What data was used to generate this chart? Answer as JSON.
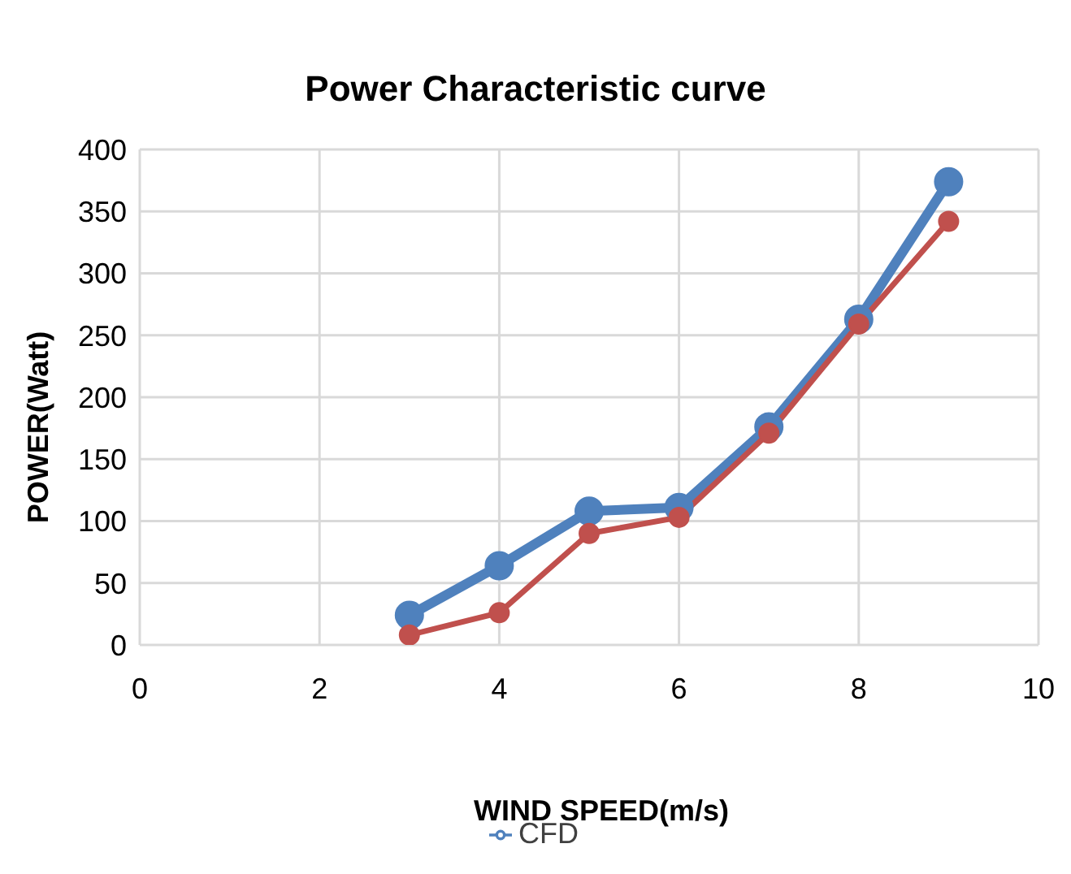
{
  "chart_data": {
    "type": "line",
    "title": "Power Characteristic curve",
    "xlabel": "WIND SPEED(m/s)",
    "ylabel": "POWER(Watt)",
    "x": [
      3,
      4,
      5,
      6,
      7,
      8,
      9
    ],
    "series": [
      {
        "name": "CFD",
        "color": "#4f81bd",
        "values": [
          24,
          64,
          108,
          111,
          176,
          263,
          374
        ]
      },
      {
        "color": "#c0504d",
        "values": [
          8,
          26,
          90,
          103,
          171,
          259,
          342
        ]
      }
    ],
    "xlim": [
      0,
      10
    ],
    "xticks": [
      0,
      2,
      4,
      6,
      8,
      10
    ],
    "ylim": [
      0,
      400
    ],
    "yticks": [
      0,
      50,
      100,
      150,
      200,
      250,
      300,
      350,
      400
    ],
    "grid": true,
    "legend": "bottom",
    "marker": "circle",
    "line_style": "solid"
  }
}
